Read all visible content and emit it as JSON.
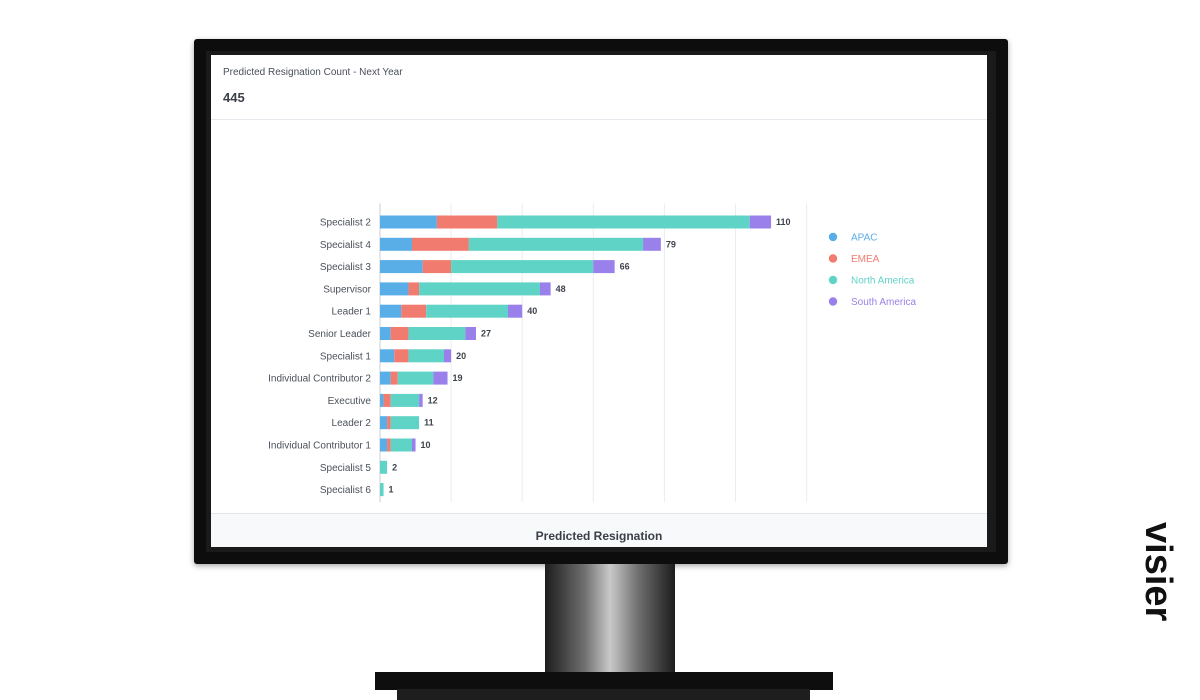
{
  "widget": {
    "title": "Predicted Resignation Count - Next Year",
    "total": "445",
    "footer_title": "Predicted Resignation"
  },
  "brand": {
    "logo_text": "visier"
  },
  "colors": {
    "APAC": "#5aaee8",
    "EMEA": "#f27b6f",
    "North America": "#5fd3c6",
    "South America": "#9a80ea"
  },
  "chart_data": {
    "type": "bar",
    "orientation": "horizontal",
    "stacked": true,
    "categories": [
      "Specialist 2",
      "Specialist 4",
      "Specialist 3",
      "Supervisor",
      "Leader 1",
      "Senior Leader",
      "Specialist 1",
      "Individual Contributor 2",
      "Executive",
      "Leader 2",
      "Individual Contributor 1",
      "Specialist 5",
      "Specialist 6"
    ],
    "series": [
      {
        "name": "APAC",
        "values": [
          16,
          9,
          12,
          8,
          6,
          3,
          4,
          3,
          1,
          2,
          2,
          0,
          0
        ]
      },
      {
        "name": "EMEA",
        "values": [
          17,
          16,
          8,
          3,
          7,
          5,
          4,
          2,
          2,
          1,
          1,
          0,
          0
        ]
      },
      {
        "name": "North America",
        "values": [
          71,
          49,
          40,
          34,
          23,
          16,
          10,
          10,
          8,
          8,
          6,
          2,
          1
        ]
      },
      {
        "name": "South America",
        "values": [
          6,
          5,
          6,
          3,
          4,
          3,
          2,
          4,
          1,
          0,
          1,
          0,
          0
        ]
      }
    ],
    "totals": [
      110,
      79,
      66,
      48,
      40,
      27,
      20,
      19,
      12,
      11,
      10,
      2,
      1
    ],
    "xticks": [
      0,
      20,
      40,
      60,
      80,
      100,
      120
    ],
    "xlim": [
      0,
      120
    ],
    "grid": true,
    "legend_position": "right"
  }
}
